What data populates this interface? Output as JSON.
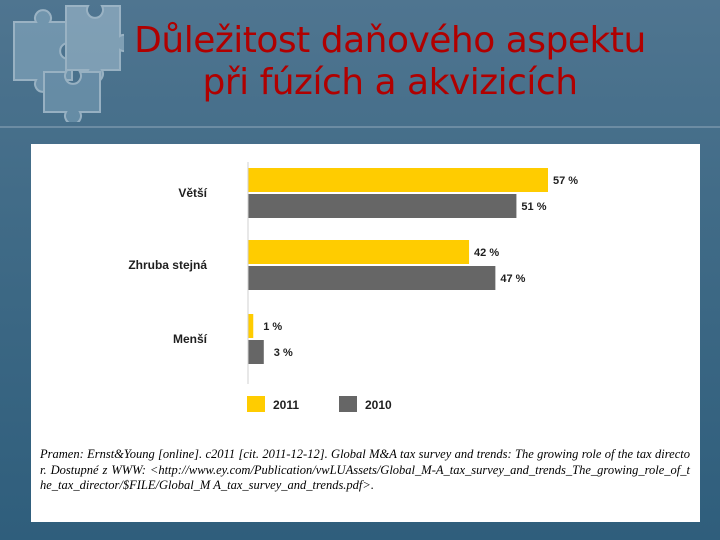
{
  "title": {
    "line1": "Důležitost daňového aspektu",
    "line2": "při fúzích a akvizicích"
  },
  "colors": {
    "series_2011": "#ffcc00",
    "series_2010": "#666666",
    "title": "#b00000",
    "background": "#3f6a86"
  },
  "decor": {
    "icon": "puzzle-pieces-icon"
  },
  "chart_data": {
    "type": "bar",
    "orientation": "horizontal",
    "categories": [
      "Větší",
      "Zhruba stejná",
      "Menší"
    ],
    "series": [
      {
        "name": "2011",
        "values": [
          57,
          42,
          1
        ],
        "labels": [
          "57 %",
          "42 %",
          "1 %"
        ]
      },
      {
        "name": "2010",
        "values": [
          51,
          47,
          3
        ],
        "labels": [
          "51 %",
          "47 %",
          "3 %"
        ]
      }
    ],
    "xlim": [
      0,
      70
    ],
    "legend": "bottom",
    "grid": false
  },
  "source": "Pramen: Ernst&Young [online]. c2011 [cit. 2011-12-12]. Global M&A tax survey and trends: The growing role of the tax director. Dostupné z WWW: <http://www.ey.com/Publication/vwLUAssets/Global_M-A_tax_survey_and_trends_The_growing_role_of_the_tax_director/$FILE/Global_M A_tax_survey_and_trends.pdf>."
}
